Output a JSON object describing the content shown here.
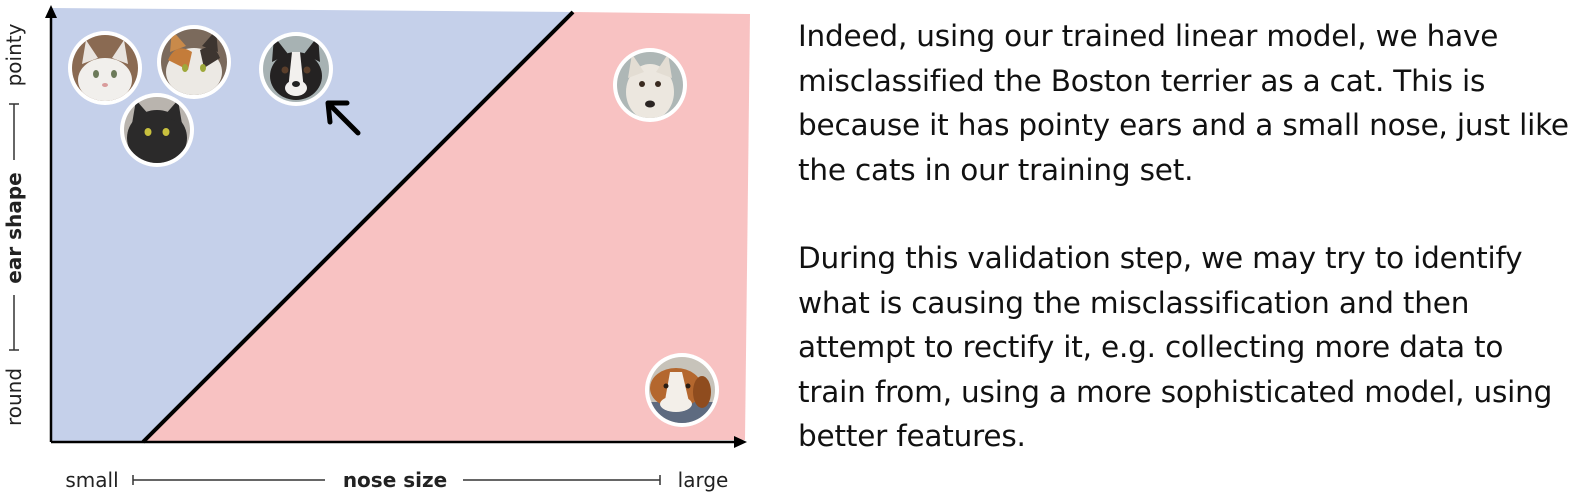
{
  "axes": {
    "x": {
      "title": "nose size",
      "min_label": "small",
      "max_label": "large"
    },
    "y": {
      "title": "ear shape",
      "min_label": "round",
      "max_label": "pointy"
    }
  },
  "regions": {
    "cat_region_color": "#c5d0ea",
    "dog_region_color": "#f8c2c2",
    "boundary_color": "#000000"
  },
  "samples": [
    {
      "kind": "cat",
      "icon": "white-cat-photo",
      "nose": 0.08,
      "ear": 0.86
    },
    {
      "kind": "cat",
      "icon": "calico-cat-photo",
      "nose": 0.21,
      "ear": 0.89
    },
    {
      "kind": "cat",
      "icon": "black-cat-photo",
      "nose": 0.15,
      "ear": 0.73
    },
    {
      "kind": "dog",
      "icon": "boston-terrier-photo",
      "nose": 0.36,
      "ear": 0.85,
      "misclassified": true
    },
    {
      "kind": "dog",
      "icon": "white-dog-photo",
      "nose": 0.9,
      "ear": 0.83
    },
    {
      "kind": "dog",
      "icon": "beagle-photo",
      "nose": 0.95,
      "ear": 0.12
    }
  ],
  "explanation": {
    "paragraph1": "Indeed, using our trained linear model, we have misclassified the Boston terrier as a cat. This is because it has pointy ears and a small nose, just like the cats in our training set.",
    "paragraph2": "During this validation step, we may try to identify what is causing the misclassification and then attempt to rectify it, e.g. collecting more data to train from, using a more sophisticated model, using better features."
  }
}
